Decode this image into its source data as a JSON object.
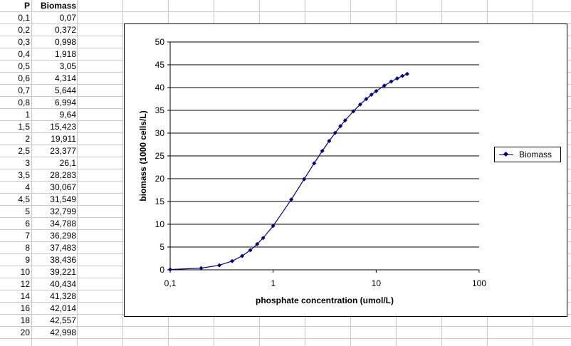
{
  "table": {
    "headers": [
      "P",
      "Biomass"
    ],
    "rows": [
      [
        "0,1",
        "0,07"
      ],
      [
        "0,2",
        "0,372"
      ],
      [
        "0,3",
        "0,998"
      ],
      [
        "0,4",
        "1,918"
      ],
      [
        "0,5",
        "3,05"
      ],
      [
        "0,6",
        "4,314"
      ],
      [
        "0,7",
        "5,644"
      ],
      [
        "0,8",
        "6,994"
      ],
      [
        "1",
        "9,64"
      ],
      [
        "1,5",
        "15,423"
      ],
      [
        "2",
        "19,911"
      ],
      [
        "2,5",
        "23,377"
      ],
      [
        "3",
        "26,1"
      ],
      [
        "3,5",
        "28,283"
      ],
      [
        "4",
        "30,067"
      ],
      [
        "4,5",
        "31,549"
      ],
      [
        "5",
        "32,799"
      ],
      [
        "6",
        "34,788"
      ],
      [
        "7",
        "36,298"
      ],
      [
        "8",
        "37,483"
      ],
      [
        "9",
        "38,436"
      ],
      [
        "10",
        "39,221"
      ],
      [
        "12",
        "40,434"
      ],
      [
        "14",
        "41,328"
      ],
      [
        "16",
        "42,014"
      ],
      [
        "18",
        "42,557"
      ],
      [
        "20",
        "42,998"
      ]
    ]
  },
  "chart_data": {
    "type": "line",
    "xscale": "log",
    "xlim": [
      0.1,
      100
    ],
    "ylim": [
      0,
      50
    ],
    "xticks": [
      "0,1",
      "1",
      "10",
      "100"
    ],
    "xtick_values": [
      0.1,
      1,
      10,
      100
    ],
    "yticks": [
      "0",
      "5",
      "10",
      "15",
      "20",
      "25",
      "30",
      "35",
      "40",
      "45",
      "50"
    ],
    "ytick_values": [
      0,
      5,
      10,
      15,
      20,
      25,
      30,
      35,
      40,
      45,
      50
    ],
    "grid": "horizontal",
    "xlabel": "phosphate concentration (umol/L)",
    "ylabel": "biomass (1000 cells/L)",
    "legend_position": "right",
    "series": [
      {
        "name": "Biomass",
        "color": "#000080",
        "x": [
          0.1,
          0.2,
          0.3,
          0.4,
          0.5,
          0.6,
          0.7,
          0.8,
          1,
          1.5,
          2,
          2.5,
          3,
          3.5,
          4,
          4.5,
          5,
          6,
          7,
          8,
          9,
          10,
          12,
          14,
          16,
          18,
          20
        ],
        "y": [
          0.07,
          0.372,
          0.998,
          1.918,
          3.05,
          4.314,
          5.644,
          6.994,
          9.64,
          15.423,
          19.911,
          23.377,
          26.1,
          28.283,
          30.067,
          31.549,
          32.799,
          34.788,
          36.298,
          37.483,
          38.436,
          39.221,
          40.434,
          41.328,
          42.014,
          42.557,
          42.998
        ]
      }
    ]
  }
}
